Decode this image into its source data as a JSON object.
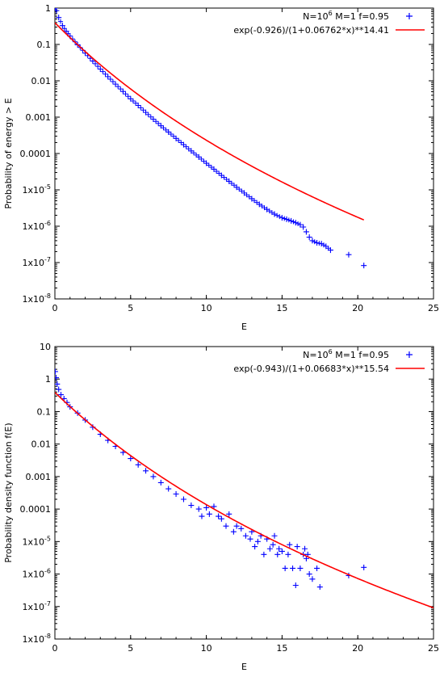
{
  "chart_data": [
    {
      "type": "scatter",
      "title": "",
      "xlabel": "E",
      "ylabel": "Probability of energy > E",
      "xlim": [
        0,
        25
      ],
      "ylim": [
        1e-08,
        1
      ],
      "yscale": "log",
      "grid": false,
      "legend_position": "top-right",
      "x_ticks": [
        "0",
        "5",
        "10",
        "15",
        "20",
        "25"
      ],
      "y_ticks": [
        {
          "base": "1x10",
          "exp": "-8"
        },
        {
          "base": "1x10",
          "exp": "-7"
        },
        {
          "base": "1x10",
          "exp": "-6"
        },
        {
          "base": "1x10",
          "exp": "-5"
        },
        {
          "base": "0.0001",
          "exp": ""
        },
        {
          "base": "0.001",
          "exp": ""
        },
        {
          "base": "0.01",
          "exp": ""
        },
        {
          "base": "0.1",
          "exp": ""
        },
        {
          "base": "1",
          "exp": ""
        }
      ],
      "series": [
        {
          "name": "N=10^6 M=1 f=0.95",
          "legend_parts": {
            "a": "N=10",
            "sup": "6",
            "b": " M=1 f=0.95"
          },
          "kind": "points",
          "marker": "+",
          "color": "#0000ff",
          "x": [
            0.02,
            0.1,
            0.25,
            0.5,
            0.75,
            1.0,
            1.5,
            2.0,
            2.5,
            3.0,
            3.5,
            4.0,
            4.5,
            5.0,
            5.5,
            6.0,
            6.5,
            7.0,
            7.5,
            8.0,
            8.5,
            9.0,
            9.5,
            10.0,
            10.5,
            11.0,
            11.5,
            12.0,
            12.5,
            13.0,
            13.5,
            14.0,
            14.5,
            15.0,
            15.3,
            15.6,
            15.9,
            16.2,
            16.4,
            16.6,
            16.8,
            17.0,
            17.3,
            17.6,
            17.9,
            18.2,
            19.4,
            20.4
          ],
          "y": [
            1.0,
            0.85,
            0.55,
            0.33,
            0.23,
            0.17,
            0.098,
            0.058,
            0.035,
            0.021,
            0.013,
            0.0081,
            0.0051,
            0.0032,
            0.0021,
            0.00135,
            0.00088,
            0.00058,
            0.00039,
            0.00026,
            0.000175,
            0.000118,
            8e-05,
            5.4e-05,
            3.7e-05,
            2.5e-05,
            1.72e-05,
            1.18e-05,
            8.2e-06,
            5.7e-06,
            4e-06,
            2.9e-06,
            2.15e-06,
            1.7e-06,
            1.55e-06,
            1.4e-06,
            1.25e-06,
            1.1e-06,
            9.5e-07,
            7e-07,
            5e-07,
            4e-07,
            3.5e-07,
            3.3e-07,
            2.8e-07,
            2.2e-07,
            1.65e-07,
            8.3e-08
          ]
        },
        {
          "name": "exp(-0.926)/(1+0.06762*x)**14.41",
          "kind": "function",
          "color": "#ff0000",
          "a": 0.926,
          "b": 0.06762,
          "n": 14.41,
          "x_range": [
            0,
            20.4
          ]
        }
      ]
    },
    {
      "type": "scatter",
      "title": "",
      "xlabel": "E",
      "ylabel": "Probability density function f(E)",
      "xlim": [
        0,
        25
      ],
      "ylim": [
        1e-08,
        10
      ],
      "yscale": "log",
      "grid": false,
      "legend_position": "top-right",
      "x_ticks": [
        "0",
        "5",
        "10",
        "15",
        "20",
        "25"
      ],
      "y_ticks": [
        {
          "base": "1x10",
          "exp": "-8"
        },
        {
          "base": "1x10",
          "exp": "-7"
        },
        {
          "base": "1x10",
          "exp": "-6"
        },
        {
          "base": "1x10",
          "exp": "-5"
        },
        {
          "base": "0.0001",
          "exp": ""
        },
        {
          "base": "0.001",
          "exp": ""
        },
        {
          "base": "0.01",
          "exp": ""
        },
        {
          "base": "0.1",
          "exp": ""
        },
        {
          "base": "1",
          "exp": ""
        },
        {
          "base": "10",
          "exp": ""
        }
      ],
      "series": [
        {
          "name": "N=10^6 M=1 f=0.95",
          "legend_parts": {
            "a": "N=10",
            "sup": "6",
            "b": " M=1 f=0.95"
          },
          "kind": "points",
          "marker": "+",
          "color": "#0000ff",
          "x": [
            0.02,
            0.08,
            0.15,
            0.25,
            0.4,
            0.6,
            0.8,
            1.0,
            1.5,
            2.0,
            2.5,
            3.0,
            3.5,
            4.0,
            4.5,
            5.0,
            5.5,
            6.0,
            6.5,
            7.0,
            7.5,
            8.0,
            8.5,
            9.0,
            9.5,
            9.7,
            10.0,
            10.2,
            10.5,
            10.8,
            11.0,
            11.3,
            11.5,
            11.8,
            12.0,
            12.3,
            12.6,
            12.9,
            13.0,
            13.2,
            13.4,
            13.6,
            13.8,
            14.0,
            14.2,
            14.4,
            14.5,
            14.7,
            14.8,
            15.0,
            15.2,
            15.4,
            15.5,
            15.7,
            15.9,
            16.0,
            16.2,
            16.4,
            16.5,
            16.6,
            16.7,
            16.8,
            17.0,
            17.3,
            17.5,
            19.4,
            20.4
          ],
          "y": [
            1.7,
            1.1,
            0.7,
            0.48,
            0.33,
            0.25,
            0.19,
            0.14,
            0.09,
            0.055,
            0.033,
            0.02,
            0.013,
            0.0085,
            0.0055,
            0.0036,
            0.0023,
            0.0015,
            0.001,
            0.00065,
            0.00042,
            0.00029,
            0.0002,
            0.00013,
            0.0001,
            6e-05,
            0.00011,
            7e-05,
            0.00012,
            6e-05,
            5e-05,
            3e-05,
            7e-05,
            2e-05,
            3e-05,
            2.5e-05,
            1.5e-05,
            1.2e-05,
            2e-05,
            7e-06,
            1e-05,
            1.5e-05,
            4e-06,
            1.2e-05,
            6e-06,
            8e-06,
            1.5e-05,
            4e-06,
            6e-06,
            5e-06,
            1.5e-06,
            4e-06,
            8e-06,
            1.5e-06,
            4.5e-07,
            7e-06,
            1.5e-06,
            4e-06,
            6e-06,
            3e-06,
            4e-06,
            1e-06,
            7e-07,
            1.5e-06,
            4e-07,
            9e-07,
            1.6e-06
          ]
        },
        {
          "name": "exp(-0.943)/(1+0.06683*x)**15.54",
          "kind": "function",
          "color": "#ff0000",
          "a": 0.943,
          "b": 0.06683,
          "n": 15.54,
          "x_range": [
            0,
            25
          ]
        }
      ]
    }
  ]
}
